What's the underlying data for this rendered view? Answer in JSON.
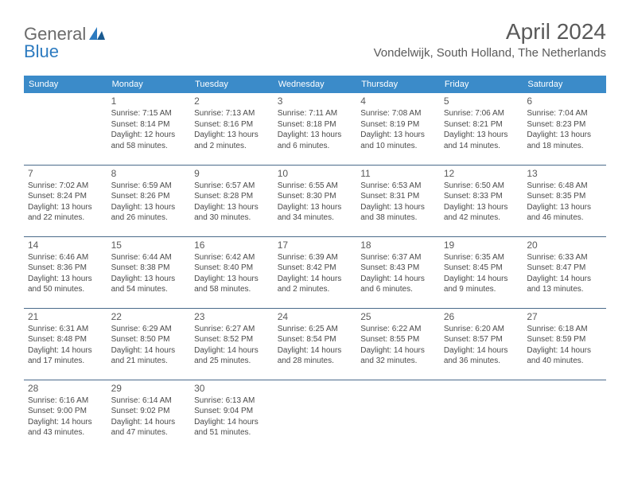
{
  "logo": {
    "text1": "General",
    "text2": "Blue"
  },
  "header": {
    "month_title": "April 2024",
    "location": "Vondelwijk, South Holland, The Netherlands"
  },
  "colors": {
    "header_bg": "#3b8bc9",
    "header_text": "#ffffff",
    "border": "#4a6a8a",
    "body_text": "#4a4a4a",
    "title_text": "#5a5a5a",
    "logo_blue": "#2d7bc0",
    "logo_gray": "#6b6b6b"
  },
  "weekdays": [
    "Sunday",
    "Monday",
    "Tuesday",
    "Wednesday",
    "Thursday",
    "Friday",
    "Saturday"
  ],
  "weeks": [
    [
      null,
      {
        "n": "1",
        "sr": "7:15 AM",
        "ss": "8:14 PM",
        "dl": "12 hours and 58 minutes."
      },
      {
        "n": "2",
        "sr": "7:13 AM",
        "ss": "8:16 PM",
        "dl": "13 hours and 2 minutes."
      },
      {
        "n": "3",
        "sr": "7:11 AM",
        "ss": "8:18 PM",
        "dl": "13 hours and 6 minutes."
      },
      {
        "n": "4",
        "sr": "7:08 AM",
        "ss": "8:19 PM",
        "dl": "13 hours and 10 minutes."
      },
      {
        "n": "5",
        "sr": "7:06 AM",
        "ss": "8:21 PM",
        "dl": "13 hours and 14 minutes."
      },
      {
        "n": "6",
        "sr": "7:04 AM",
        "ss": "8:23 PM",
        "dl": "13 hours and 18 minutes."
      }
    ],
    [
      {
        "n": "7",
        "sr": "7:02 AM",
        "ss": "8:24 PM",
        "dl": "13 hours and 22 minutes."
      },
      {
        "n": "8",
        "sr": "6:59 AM",
        "ss": "8:26 PM",
        "dl": "13 hours and 26 minutes."
      },
      {
        "n": "9",
        "sr": "6:57 AM",
        "ss": "8:28 PM",
        "dl": "13 hours and 30 minutes."
      },
      {
        "n": "10",
        "sr": "6:55 AM",
        "ss": "8:30 PM",
        "dl": "13 hours and 34 minutes."
      },
      {
        "n": "11",
        "sr": "6:53 AM",
        "ss": "8:31 PM",
        "dl": "13 hours and 38 minutes."
      },
      {
        "n": "12",
        "sr": "6:50 AM",
        "ss": "8:33 PM",
        "dl": "13 hours and 42 minutes."
      },
      {
        "n": "13",
        "sr": "6:48 AM",
        "ss": "8:35 PM",
        "dl": "13 hours and 46 minutes."
      }
    ],
    [
      {
        "n": "14",
        "sr": "6:46 AM",
        "ss": "8:36 PM",
        "dl": "13 hours and 50 minutes."
      },
      {
        "n": "15",
        "sr": "6:44 AM",
        "ss": "8:38 PM",
        "dl": "13 hours and 54 minutes."
      },
      {
        "n": "16",
        "sr": "6:42 AM",
        "ss": "8:40 PM",
        "dl": "13 hours and 58 minutes."
      },
      {
        "n": "17",
        "sr": "6:39 AM",
        "ss": "8:42 PM",
        "dl": "14 hours and 2 minutes."
      },
      {
        "n": "18",
        "sr": "6:37 AM",
        "ss": "8:43 PM",
        "dl": "14 hours and 6 minutes."
      },
      {
        "n": "19",
        "sr": "6:35 AM",
        "ss": "8:45 PM",
        "dl": "14 hours and 9 minutes."
      },
      {
        "n": "20",
        "sr": "6:33 AM",
        "ss": "8:47 PM",
        "dl": "14 hours and 13 minutes."
      }
    ],
    [
      {
        "n": "21",
        "sr": "6:31 AM",
        "ss": "8:48 PM",
        "dl": "14 hours and 17 minutes."
      },
      {
        "n": "22",
        "sr": "6:29 AM",
        "ss": "8:50 PM",
        "dl": "14 hours and 21 minutes."
      },
      {
        "n": "23",
        "sr": "6:27 AM",
        "ss": "8:52 PM",
        "dl": "14 hours and 25 minutes."
      },
      {
        "n": "24",
        "sr": "6:25 AM",
        "ss": "8:54 PM",
        "dl": "14 hours and 28 minutes."
      },
      {
        "n": "25",
        "sr": "6:22 AM",
        "ss": "8:55 PM",
        "dl": "14 hours and 32 minutes."
      },
      {
        "n": "26",
        "sr": "6:20 AM",
        "ss": "8:57 PM",
        "dl": "14 hours and 36 minutes."
      },
      {
        "n": "27",
        "sr": "6:18 AM",
        "ss": "8:59 PM",
        "dl": "14 hours and 40 minutes."
      }
    ],
    [
      {
        "n": "28",
        "sr": "6:16 AM",
        "ss": "9:00 PM",
        "dl": "14 hours and 43 minutes."
      },
      {
        "n": "29",
        "sr": "6:14 AM",
        "ss": "9:02 PM",
        "dl": "14 hours and 47 minutes."
      },
      {
        "n": "30",
        "sr": "6:13 AM",
        "ss": "9:04 PM",
        "dl": "14 hours and 51 minutes."
      },
      null,
      null,
      null,
      null
    ]
  ],
  "labels": {
    "sunrise": "Sunrise:",
    "sunset": "Sunset:",
    "daylight": "Daylight:"
  }
}
